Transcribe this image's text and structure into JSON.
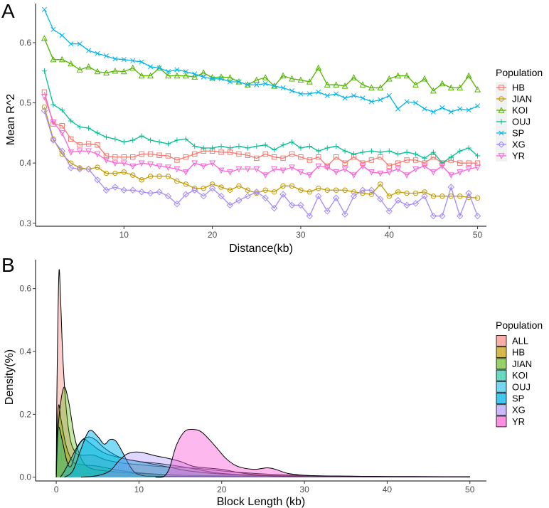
{
  "figure": {
    "panel_a_letter": "A",
    "panel_b_letter": "B"
  },
  "chart_data": [
    {
      "type": "line",
      "panel": "A",
      "xlabel": "Distance(kb)",
      "ylabel": "Mean R^2",
      "xlim": [
        0,
        51
      ],
      "ylim": [
        0.295,
        0.665
      ],
      "xticks": [
        10,
        20,
        30,
        40,
        50
      ],
      "yticks": [
        0.3,
        0.4,
        0.5,
        0.6
      ],
      "ytick_labels": [
        "0.3",
        "0.4",
        "0.5",
        "0.6"
      ],
      "legend_title": "Population",
      "x": [
        1,
        2,
        3,
        4,
        5,
        6,
        7,
        8,
        9,
        10,
        11,
        12,
        13,
        14,
        15,
        16,
        17,
        18,
        19,
        20,
        21,
        22,
        23,
        24,
        25,
        26,
        27,
        28,
        29,
        30,
        31,
        32,
        33,
        34,
        35,
        36,
        37,
        38,
        39,
        40,
        41,
        42,
        43,
        44,
        45,
        46,
        47,
        48,
        49,
        50
      ],
      "series": [
        {
          "name": "HB",
          "color": "#F8766D",
          "marker": "square",
          "values": [
            0.518,
            0.465,
            0.462,
            0.44,
            0.43,
            0.432,
            0.43,
            0.412,
            0.41,
            0.41,
            0.41,
            0.415,
            0.415,
            0.413,
            0.412,
            0.405,
            0.41,
            0.415,
            0.42,
            0.42,
            0.418,
            0.418,
            0.415,
            0.413,
            0.408,
            0.415,
            0.41,
            0.408,
            0.415,
            0.41,
            0.405,
            0.41,
            0.395,
            0.41,
            0.4,
            0.41,
            0.4,
            0.405,
            0.41,
            0.395,
            0.4,
            0.405,
            0.405,
            0.4,
            0.41,
            0.4,
            0.405,
            0.4,
            0.4,
            0.4
          ]
        },
        {
          "name": "JIAN",
          "color": "#C49A00",
          "marker": "circle",
          "values": [
            0.493,
            0.44,
            0.415,
            0.4,
            0.392,
            0.39,
            0.393,
            0.383,
            0.383,
            0.385,
            0.38,
            0.372,
            0.378,
            0.378,
            0.378,
            0.37,
            0.365,
            0.358,
            0.358,
            0.365,
            0.36,
            0.355,
            0.362,
            0.355,
            0.35,
            0.355,
            0.352,
            0.362,
            0.362,
            0.355,
            0.352,
            0.358,
            0.355,
            0.355,
            0.355,
            0.352,
            0.35,
            0.348,
            0.365,
            0.345,
            0.352,
            0.35,
            0.35,
            0.352,
            0.345,
            0.345,
            0.345,
            0.345,
            0.343,
            0.342
          ]
        },
        {
          "name": "KOI",
          "color": "#53B400",
          "marker": "triangle",
          "values": [
            0.607,
            0.572,
            0.572,
            0.565,
            0.555,
            0.56,
            0.552,
            0.55,
            0.553,
            0.552,
            0.558,
            0.545,
            0.545,
            0.558,
            0.545,
            0.545,
            0.545,
            0.543,
            0.55,
            0.542,
            0.543,
            0.542,
            0.535,
            0.53,
            0.538,
            0.542,
            0.528,
            0.545,
            0.54,
            0.538,
            0.535,
            0.558,
            0.53,
            0.53,
            0.528,
            0.542,
            0.53,
            0.525,
            0.525,
            0.54,
            0.545,
            0.545,
            0.53,
            0.54,
            0.52,
            0.532,
            0.525,
            0.525,
            0.545,
            0.522
          ]
        },
        {
          "name": "OUJ",
          "color": "#00C094",
          "marker": "plus",
          "values": [
            0.553,
            0.497,
            0.488,
            0.47,
            0.46,
            0.458,
            0.45,
            0.443,
            0.44,
            0.435,
            0.438,
            0.445,
            0.438,
            0.435,
            0.432,
            0.438,
            0.44,
            0.428,
            0.425,
            0.425,
            0.428,
            0.425,
            0.428,
            0.425,
            0.428,
            0.43,
            0.422,
            0.43,
            0.435,
            0.425,
            0.428,
            0.42,
            0.425,
            0.428,
            0.42,
            0.415,
            0.418,
            0.42,
            0.418,
            0.42,
            0.415,
            0.418,
            0.415,
            0.408,
            0.418,
            0.4,
            0.41,
            0.42,
            0.425,
            0.412
          ]
        },
        {
          "name": "SP",
          "color": "#00B6EB",
          "marker": "x",
          "values": [
            0.655,
            0.622,
            0.612,
            0.598,
            0.598,
            0.587,
            0.582,
            0.578,
            0.573,
            0.572,
            0.57,
            0.568,
            0.56,
            0.558,
            0.552,
            0.555,
            0.552,
            0.548,
            0.543,
            0.54,
            0.54,
            0.535,
            0.535,
            0.53,
            0.53,
            0.532,
            0.528,
            0.525,
            0.52,
            0.515,
            0.515,
            0.518,
            0.512,
            0.515,
            0.508,
            0.512,
            0.508,
            0.502,
            0.505,
            0.512,
            0.49,
            0.502,
            0.5,
            0.49,
            0.485,
            0.492,
            0.485,
            0.49,
            0.488,
            0.495
          ]
        },
        {
          "name": "XG",
          "color": "#A58AFF",
          "marker": "diamond",
          "values": [
            0.487,
            0.438,
            0.42,
            0.392,
            0.39,
            0.39,
            0.372,
            0.355,
            0.36,
            0.355,
            0.355,
            0.352,
            0.35,
            0.352,
            0.345,
            0.332,
            0.348,
            0.355,
            0.345,
            0.358,
            0.345,
            0.33,
            0.338,
            0.345,
            0.352,
            0.342,
            0.325,
            0.348,
            0.33,
            0.33,
            0.312,
            0.345,
            0.32,
            0.342,
            0.315,
            0.345,
            0.355,
            0.355,
            0.34,
            0.32,
            0.338,
            0.33,
            0.333,
            0.345,
            0.312,
            0.312,
            0.36,
            0.312,
            0.35,
            0.312
          ]
        },
        {
          "name": "YR",
          "color": "#FB61D7",
          "marker": "triangle-down",
          "values": [
            0.51,
            0.468,
            0.45,
            0.418,
            0.42,
            0.42,
            0.415,
            0.405,
            0.4,
            0.4,
            0.395,
            0.4,
            0.398,
            0.395,
            0.393,
            0.39,
            0.385,
            0.4,
            0.395,
            0.4,
            0.388,
            0.385,
            0.39,
            0.39,
            0.39,
            0.38,
            0.39,
            0.388,
            0.393,
            0.385,
            0.38,
            0.395,
            0.393,
            0.385,
            0.39,
            0.38,
            0.395,
            0.385,
            0.383,
            0.385,
            0.39,
            0.38,
            0.39,
            0.395,
            0.385,
            0.395,
            0.38,
            0.385,
            0.39,
            0.393
          ]
        }
      ]
    },
    {
      "type": "area",
      "panel": "B",
      "xlabel": "Block Length (kb)",
      "ylabel": "Density(%)",
      "xlim": [
        -2.5,
        52
      ],
      "ylim": [
        -0.012,
        0.692
      ],
      "xticks": [
        0,
        10,
        20,
        30,
        40,
        50
      ],
      "yticks": [
        0.0,
        0.2,
        0.4,
        0.6
      ],
      "ytick_labels": [
        "0.0",
        "0.2",
        "0.4",
        "0.6"
      ],
      "legend_title": "Population",
      "series": [
        {
          "name": "ALL",
          "color": "#F8766D",
          "opacity": 0.35,
          "points": [
            [
              0,
              0
            ],
            [
              0.05,
              0.2
            ],
            [
              0.2,
              0.5
            ],
            [
              0.35,
              0.66
            ],
            [
              0.55,
              0.55
            ],
            [
              0.8,
              0.38
            ],
            [
              1.2,
              0.22
            ],
            [
              1.7,
              0.12
            ],
            [
              2.3,
              0.08
            ],
            [
              3,
              0.07
            ],
            [
              4.5,
              0.07
            ],
            [
              6,
              0.055
            ],
            [
              8,
              0.045
            ],
            [
              10,
              0.04
            ],
            [
              12,
              0.035
            ],
            [
              14,
              0.032
            ],
            [
              16,
              0.03
            ],
            [
              18,
              0.026
            ],
            [
              20,
              0.02
            ],
            [
              24,
              0.012
            ],
            [
              28,
              0.007
            ],
            [
              32,
              0.004
            ],
            [
              40,
              0.002
            ],
            [
              50,
              0.001
            ]
          ]
        },
        {
          "name": "HB",
          "color": "#C49A00",
          "opacity": 0.45,
          "points": [
            [
              0,
              0
            ],
            [
              0.1,
              0.15
            ],
            [
              0.3,
              0.23
            ],
            [
              0.6,
              0.18
            ],
            [
              1.2,
              0.1
            ],
            [
              2,
              0.05
            ],
            [
              3,
              0.04
            ],
            [
              5,
              0.035
            ],
            [
              8,
              0.02
            ],
            [
              12,
              0.01
            ],
            [
              18,
              0.005
            ],
            [
              30,
              0.002
            ],
            [
              50,
              0.001
            ]
          ]
        },
        {
          "name": "JIAN",
          "color": "#53B400",
          "opacity": 0.35,
          "points": [
            [
              0,
              0
            ],
            [
              0.3,
              0.18
            ],
            [
              0.9,
              0.285
            ],
            [
              1.5,
              0.24
            ],
            [
              2.2,
              0.13
            ],
            [
              3,
              0.06
            ],
            [
              4,
              0.03
            ],
            [
              6,
              0.02
            ],
            [
              10,
              0.012
            ],
            [
              15,
              0.006
            ],
            [
              25,
              0.003
            ],
            [
              50,
              0.001
            ]
          ]
        },
        {
          "name": "KOI",
          "color": "#00C094",
          "opacity": 0.35,
          "points": [
            [
              0,
              0
            ],
            [
              0.1,
              0.12
            ],
            [
              0.3,
              0.16
            ],
            [
              0.7,
              0.12
            ],
            [
              1.3,
              0.05
            ],
            [
              1.8,
              0.035
            ],
            [
              2.5,
              0.09
            ],
            [
              3.3,
              0.12
            ],
            [
              4,
              0.11
            ],
            [
              5,
              0.09
            ],
            [
              6,
              0.075
            ],
            [
              8,
              0.06
            ],
            [
              10,
              0.05
            ],
            [
              12,
              0.045
            ],
            [
              14,
              0.038
            ],
            [
              16,
              0.03
            ],
            [
              18,
              0.02
            ],
            [
              20,
              0.012
            ],
            [
              24,
              0.006
            ],
            [
              30,
              0.003
            ],
            [
              50,
              0.001
            ]
          ]
        },
        {
          "name": "OUJ",
          "color": "#00B6EB",
          "opacity": 0.3,
          "points": [
            [
              0.5,
              0
            ],
            [
              1,
              0.02
            ],
            [
              1.8,
              0.06
            ],
            [
              2.5,
              0.095
            ],
            [
              3.2,
              0.12
            ],
            [
              4,
              0.128
            ],
            [
              4.8,
              0.118
            ],
            [
              5.5,
              0.1
            ],
            [
              6.5,
              0.08
            ],
            [
              8,
              0.06
            ],
            [
              10,
              0.05
            ],
            [
              12,
              0.04
            ],
            [
              14,
              0.03
            ],
            [
              16,
              0.02
            ],
            [
              20,
              0.01
            ],
            [
              25,
              0.005
            ],
            [
              35,
              0.002
            ],
            [
              50,
              0.001
            ]
          ]
        },
        {
          "name": "SP",
          "color": "#00B6EB",
          "opacity": 0.5,
          "points": [
            [
              1,
              0
            ],
            [
              2,
              0.02
            ],
            [
              3,
              0.09
            ],
            [
              4,
              0.148
            ],
            [
              5,
              0.13
            ],
            [
              5.8,
              0.105
            ],
            [
              6.5,
              0.12
            ],
            [
              7.2,
              0.115
            ],
            [
              8,
              0.08
            ],
            [
              8.8,
              0.04
            ],
            [
              9.5,
              0.015
            ],
            [
              10.5,
              0.005
            ],
            [
              12,
              0.003
            ],
            [
              20,
              0.002
            ],
            [
              50,
              0.001
            ]
          ]
        },
        {
          "name": "XG",
          "color": "#A58AFF",
          "opacity": 0.35,
          "points": [
            [
              3,
              0
            ],
            [
              5,
              0.005
            ],
            [
              6.5,
              0.02
            ],
            [
              7.5,
              0.05
            ],
            [
              8.5,
              0.073
            ],
            [
              9.5,
              0.08
            ],
            [
              10.5,
              0.078
            ],
            [
              12,
              0.068
            ],
            [
              13.5,
              0.06
            ],
            [
              15,
              0.05
            ],
            [
              16.5,
              0.035
            ],
            [
              18,
              0.03
            ],
            [
              20,
              0.025
            ],
            [
              22,
              0.015
            ],
            [
              24,
              0.008
            ],
            [
              27,
              0.003
            ],
            [
              32,
              0.002
            ],
            [
              50,
              0.001
            ]
          ]
        },
        {
          "name": "YR",
          "color": "#FB61D7",
          "opacity": 0.45,
          "points": [
            [
              12,
              0
            ],
            [
              13,
              0.002
            ],
            [
              13.7,
              0.03
            ],
            [
              14.5,
              0.1
            ],
            [
              15.5,
              0.145
            ],
            [
              16.5,
              0.152
            ],
            [
              17.5,
              0.145
            ],
            [
              18.5,
              0.12
            ],
            [
              19.5,
              0.09
            ],
            [
              20.5,
              0.06
            ],
            [
              21.5,
              0.04
            ],
            [
              22.5,
              0.03
            ],
            [
              24,
              0.025
            ],
            [
              25.5,
              0.03
            ],
            [
              26.5,
              0.025
            ],
            [
              28,
              0.012
            ],
            [
              30,
              0.006
            ],
            [
              32,
              0.004
            ],
            [
              36,
              0.003
            ],
            [
              40,
              0.002
            ],
            [
              45,
              0.002
            ],
            [
              50,
              0.001
            ]
          ]
        }
      ]
    }
  ]
}
